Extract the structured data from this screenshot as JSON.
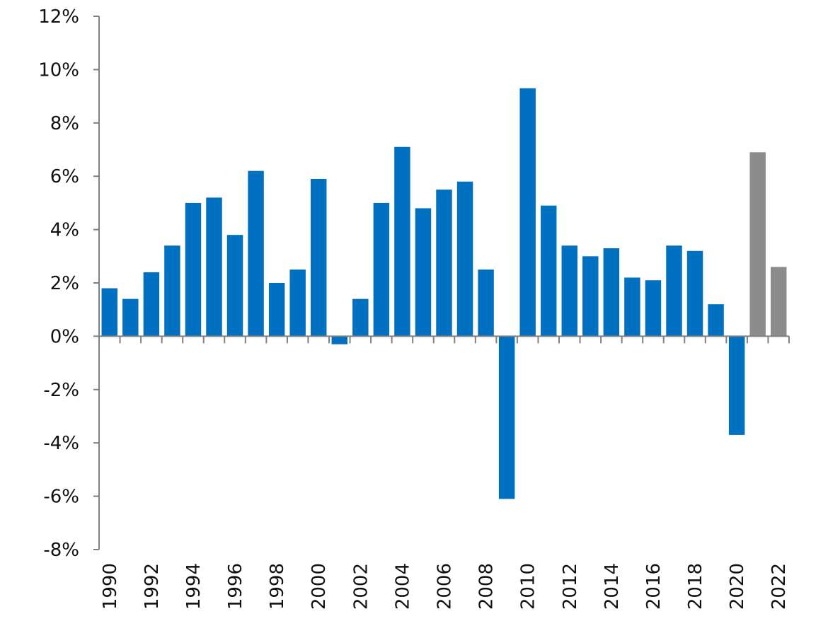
{
  "chart_data": {
    "type": "bar",
    "title": "",
    "xlabel": "",
    "ylabel": "",
    "ylim": [
      -8,
      12
    ],
    "yticks": [
      -8,
      -6,
      -4,
      -2,
      0,
      2,
      4,
      6,
      8,
      10,
      12
    ],
    "ytick_labels": [
      "-8%",
      "-6%",
      "-4%",
      "-2%",
      "0%",
      "2%",
      "4%",
      "6%",
      "8%",
      "10%",
      "12%"
    ],
    "grid": false,
    "categories": [
      "1990",
      "1991",
      "1992",
      "1993",
      "1994",
      "1995",
      "1996",
      "1997",
      "1998",
      "1999",
      "2000",
      "2001",
      "2002",
      "2003",
      "2004",
      "2005",
      "2006",
      "2007",
      "2008",
      "2009",
      "2010",
      "2011",
      "2012",
      "2013",
      "2014",
      "2015",
      "2016",
      "2017",
      "2018",
      "2019",
      "2020",
      "2021",
      "2022"
    ],
    "xtick_labels": [
      "1990",
      "1992",
      "1994",
      "1996",
      "1998",
      "2000",
      "2002",
      "2004",
      "2006",
      "2008",
      "2010",
      "2012",
      "2014",
      "2016",
      "2018",
      "2020",
      "2022"
    ],
    "values": [
      1.8,
      1.4,
      2.4,
      3.4,
      5.0,
      5.2,
      3.8,
      6.2,
      2.0,
      2.5,
      5.9,
      -0.3,
      1.4,
      5.0,
      7.1,
      4.8,
      5.5,
      5.8,
      2.5,
      -6.1,
      9.3,
      4.9,
      3.4,
      3.0,
      3.3,
      2.2,
      2.1,
      3.4,
      3.2,
      1.2,
      -3.7,
      6.9,
      2.6
    ],
    "forecast_from": "2021",
    "colors": {
      "actual": "#0070C0",
      "forecast": "#8C8C8C",
      "axis": "#808080"
    }
  }
}
